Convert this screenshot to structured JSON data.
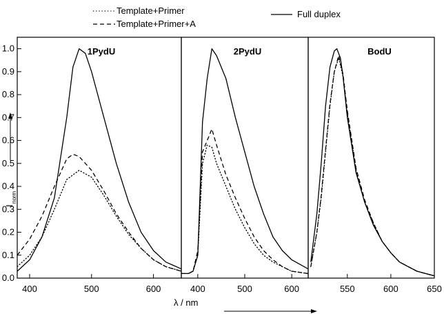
{
  "legend": {
    "template_primer": "Template+Primer",
    "template_primer_a": "Template+Primer+A",
    "full_duplex": "Full duplex"
  },
  "xlabel": "λ / nm",
  "ylabel_main": "I",
  "ylabel_sub": "norm",
  "ylim": [
    0,
    1.05
  ],
  "yticks": [
    "0.0",
    "0.1",
    "0.2",
    "0.3",
    "0.4",
    "0.5",
    "0.6",
    "0.7",
    "0.8",
    "0.9",
    "1.0"
  ],
  "chart_data": [
    {
      "type": "line",
      "title": "1PydU",
      "xlim": [
        380,
        645
      ],
      "xticks": [
        400,
        500,
        600
      ],
      "ylim": [
        0,
        1.05
      ],
      "series": [
        {
          "name": "Template+Primer",
          "style": "dotted",
          "x": [
            380,
            400,
            420,
            440,
            460,
            480,
            500,
            520,
            540,
            560,
            580,
            600,
            620,
            645
          ],
          "y": [
            0.05,
            0.1,
            0.18,
            0.3,
            0.43,
            0.47,
            0.44,
            0.36,
            0.27,
            0.19,
            0.13,
            0.08,
            0.05,
            0.03
          ]
        },
        {
          "name": "Template+Primer+A",
          "style": "dashed",
          "x": [
            380,
            400,
            420,
            440,
            460,
            470,
            480,
            500,
            520,
            540,
            560,
            580,
            600,
            620,
            645
          ],
          "y": [
            0.1,
            0.17,
            0.27,
            0.4,
            0.52,
            0.54,
            0.53,
            0.47,
            0.38,
            0.28,
            0.2,
            0.13,
            0.08,
            0.05,
            0.03
          ]
        },
        {
          "name": "Full duplex",
          "style": "solid",
          "x": [
            380,
            400,
            420,
            440,
            460,
            470,
            480,
            490,
            500,
            520,
            540,
            560,
            580,
            600,
            620,
            645
          ],
          "y": [
            0.03,
            0.08,
            0.18,
            0.35,
            0.7,
            0.92,
            1.0,
            0.98,
            0.9,
            0.7,
            0.5,
            0.33,
            0.2,
            0.12,
            0.07,
            0.04
          ]
        }
      ]
    },
    {
      "type": "line",
      "title": "2PydU",
      "xlim": [
        365,
        635
      ],
      "xticks": [
        400,
        500,
        600
      ],
      "ylim": [
        0,
        1.05
      ],
      "series": [
        {
          "name": "Template+Primer",
          "style": "dotted",
          "x": [
            365,
            380,
            390,
            400,
            410,
            420,
            430,
            440,
            460,
            480,
            500,
            520,
            540,
            560,
            580,
            600,
            635
          ],
          "y": [
            0.02,
            0.02,
            0.03,
            0.1,
            0.5,
            0.58,
            0.57,
            0.5,
            0.4,
            0.3,
            0.22,
            0.15,
            0.1,
            0.07,
            0.05,
            0.03,
            0.02
          ]
        },
        {
          "name": "Template+Primer+A",
          "style": "dashed",
          "x": [
            365,
            380,
            390,
            400,
            410,
            420,
            430,
            440,
            460,
            480,
            500,
            520,
            540,
            560,
            580,
            600,
            635
          ],
          "y": [
            0.02,
            0.02,
            0.03,
            0.12,
            0.55,
            0.6,
            0.65,
            0.58,
            0.45,
            0.35,
            0.26,
            0.18,
            0.12,
            0.08,
            0.05,
            0.03,
            0.02
          ]
        },
        {
          "name": "Full duplex",
          "style": "solid",
          "x": [
            365,
            380,
            390,
            400,
            410,
            420,
            430,
            440,
            460,
            480,
            500,
            520,
            540,
            560,
            580,
            600,
            635
          ],
          "y": [
            0.02,
            0.02,
            0.03,
            0.1,
            0.68,
            0.87,
            1.0,
            0.97,
            0.87,
            0.7,
            0.55,
            0.4,
            0.28,
            0.18,
            0.12,
            0.08,
            0.04
          ]
        }
      ]
    },
    {
      "type": "line",
      "title": "BodU",
      "xlim": [
        505,
        650
      ],
      "xticks": [
        550,
        600,
        650
      ],
      "ylim": [
        0,
        1.05
      ],
      "series": [
        {
          "name": "Template+Primer",
          "style": "dotted",
          "x": [
            508,
            515,
            520,
            525,
            530,
            535,
            540,
            545,
            550,
            560,
            570,
            580,
            590,
            600,
            610,
            620,
            630,
            640,
            650
          ],
          "y": [
            0.05,
            0.2,
            0.35,
            0.55,
            0.75,
            0.9,
            0.96,
            0.88,
            0.72,
            0.47,
            0.33,
            0.24,
            0.16,
            0.11,
            0.07,
            0.05,
            0.03,
            0.02,
            0.01
          ]
        },
        {
          "name": "Template+Primer+A",
          "style": "dashed",
          "x": [
            508,
            515,
            520,
            525,
            530,
            535,
            540,
            545,
            550,
            560,
            570,
            580,
            590,
            600,
            610,
            620,
            630,
            640,
            650
          ],
          "y": [
            0.05,
            0.2,
            0.36,
            0.56,
            0.76,
            0.9,
            0.97,
            0.89,
            0.73,
            0.48,
            0.34,
            0.24,
            0.16,
            0.11,
            0.07,
            0.05,
            0.03,
            0.02,
            0.01
          ]
        },
        {
          "name": "Full duplex",
          "style": "solid",
          "x": [
            508,
            515,
            520,
            525,
            530,
            535,
            538,
            542,
            545,
            550,
            560,
            570,
            580,
            590,
            600,
            610,
            620,
            630,
            640,
            650
          ],
          "y": [
            0.07,
            0.28,
            0.5,
            0.75,
            0.92,
            0.99,
            1.0,
            0.96,
            0.88,
            0.7,
            0.46,
            0.33,
            0.23,
            0.16,
            0.11,
            0.07,
            0.05,
            0.03,
            0.02,
            0.01
          ]
        }
      ]
    }
  ]
}
